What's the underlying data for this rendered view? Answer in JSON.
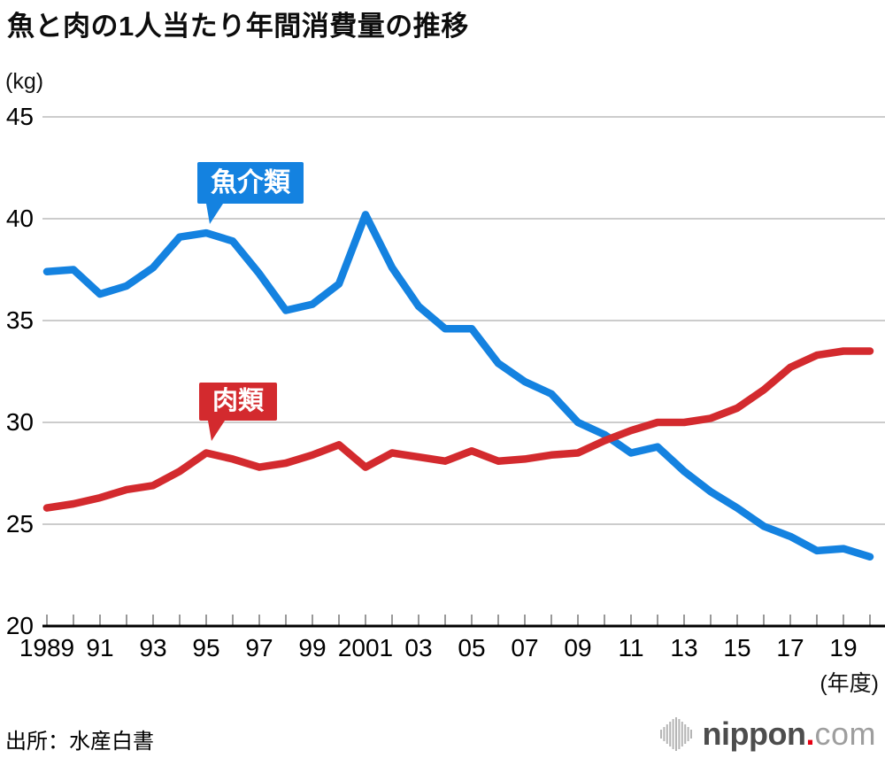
{
  "title": "魚と肉の1人当たり年間消費量の推移",
  "source": "出所：水産白書",
  "logo": {
    "brand": "nippon",
    "dot": ".",
    "tld": "com",
    "icon": "soundwave-bars-icon",
    "dot_color": "#e60012"
  },
  "y_axis": {
    "unit": "(kg)"
  },
  "x_axis": {
    "unit": "(年度)"
  },
  "colors": {
    "fish": "#1482e0",
    "meat": "#d32a2e",
    "grid": "#cccccc",
    "axis": "#000000",
    "tick": "#777777"
  },
  "chart_data": {
    "type": "line",
    "title": "魚と肉の1人当たり年間消費量の推移",
    "ylabel": "(kg)",
    "xlabel": "(年度)",
    "ylim": [
      20,
      45
    ],
    "yticks": [
      20,
      25,
      30,
      35,
      40,
      45
    ],
    "grid": true,
    "legend_position": "callout-labels-on-chart",
    "x": [
      1989,
      1990,
      1991,
      1992,
      1993,
      1994,
      1995,
      1996,
      1997,
      1998,
      1999,
      2000,
      2001,
      2002,
      2003,
      2004,
      2005,
      2006,
      2007,
      2008,
      2009,
      2010,
      2011,
      2012,
      2013,
      2014,
      2015,
      2016,
      2017,
      2018,
      2019,
      2020
    ],
    "x_tick_labels": [
      {
        "text": "1989",
        "year": 1989
      },
      {
        "text": "91",
        "year": 1991
      },
      {
        "text": "93",
        "year": 1993
      },
      {
        "text": "95",
        "year": 1995
      },
      {
        "text": "97",
        "year": 1997
      },
      {
        "text": "99",
        "year": 1999
      },
      {
        "text": "2001",
        "year": 2001
      },
      {
        "text": "03",
        "year": 2003
      },
      {
        "text": "05",
        "year": 2005
      },
      {
        "text": "07",
        "year": 2007
      },
      {
        "text": "09",
        "year": 2009
      },
      {
        "text": "11",
        "year": 2011
      },
      {
        "text": "13",
        "year": 2013
      },
      {
        "text": "15",
        "year": 2015
      },
      {
        "text": "17",
        "year": 2017
      },
      {
        "text": "19",
        "year": 2019
      }
    ],
    "series": [
      {
        "name": "魚介類",
        "color": "#1482e0",
        "values": [
          37.4,
          37.5,
          36.3,
          36.7,
          37.6,
          39.1,
          39.3,
          38.9,
          37.3,
          35.5,
          35.8,
          36.8,
          40.2,
          37.6,
          35.7,
          34.6,
          34.6,
          32.9,
          32.0,
          31.4,
          30.0,
          29.4,
          28.5,
          28.8,
          27.6,
          26.6,
          25.8,
          24.9,
          24.4,
          23.7,
          23.8,
          23.4
        ]
      },
      {
        "name": "肉類",
        "color": "#d32a2e",
        "values": [
          25.8,
          26.0,
          26.3,
          26.7,
          26.9,
          27.6,
          28.5,
          28.2,
          27.8,
          28.0,
          28.4,
          28.9,
          27.8,
          28.5,
          28.3,
          28.1,
          28.6,
          28.1,
          28.2,
          28.4,
          28.5,
          29.1,
          29.6,
          30.0,
          30.0,
          30.2,
          30.7,
          31.6,
          32.7,
          33.3,
          33.5,
          33.5
        ]
      }
    ]
  }
}
